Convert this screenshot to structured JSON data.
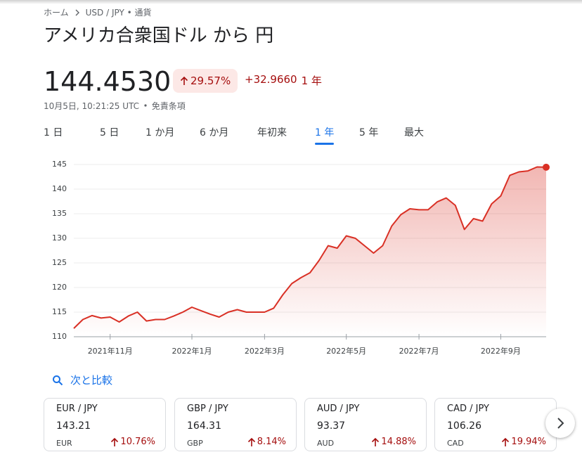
{
  "breadcrumb": {
    "home": "ホーム",
    "current": "USD / JPY • 通貨"
  },
  "title": "アメリカ合衆国ドル から 円",
  "price": "144.4530",
  "change_percent": "29.57%",
  "change_value": "+32.9660",
  "change_period": "1 年",
  "timestamp": "10月5日, 10:21:25 UTC",
  "disclaimer": "免責条項",
  "tabs": [
    "1 日",
    "5 日",
    "1 か月",
    "6 か月",
    "年初来",
    "1 年",
    "5 年",
    "最大"
  ],
  "active_tab": 5,
  "chart_data": {
    "type": "line",
    "color": "#d93025",
    "categories": [
      null,
      null,
      null,
      null,
      "2021年11月",
      null,
      null,
      null,
      null,
      null,
      null,
      null,
      null,
      "2022年1月",
      null,
      null,
      null,
      null,
      null,
      null,
      null,
      "2022年3月",
      null,
      null,
      null,
      null,
      null,
      null,
      null,
      null,
      "2022年5月",
      null,
      null,
      null,
      null,
      null,
      null,
      null,
      "2022年7月",
      null,
      null,
      null,
      null,
      null,
      null,
      null,
      null,
      "2022年9月",
      null,
      null,
      null,
      null,
      null
    ],
    "values": [
      111.7,
      113.5,
      114.3,
      113.8,
      114.0,
      113.0,
      114.2,
      115.0,
      113.2,
      113.5,
      113.5,
      114.2,
      115.0,
      116.0,
      115.3,
      114.6,
      114.0,
      115.0,
      115.5,
      115.0,
      115.0,
      115.0,
      115.8,
      118.5,
      120.8,
      122.0,
      123.0,
      125.5,
      128.5,
      128.0,
      130.5,
      130.0,
      128.5,
      127.0,
      128.5,
      132.5,
      134.8,
      136.0,
      135.8,
      135.8,
      137.4,
      138.2,
      136.7,
      131.8,
      134.0,
      133.5,
      137.0,
      138.6,
      142.8,
      143.5,
      143.7,
      144.5,
      144.45
    ],
    "ylim": [
      110,
      146
    ],
    "yticks": [
      110,
      115,
      120,
      125,
      130,
      135,
      140,
      145
    ],
    "grid": true
  },
  "compare_label": "次と比較",
  "cards": [
    {
      "pair": "EUR / JPY",
      "price": "143.21",
      "currency": "EUR",
      "change": "10.76%"
    },
    {
      "pair": "GBP / JPY",
      "price": "164.31",
      "currency": "GBP",
      "change": "8.14%"
    },
    {
      "pair": "AUD / JPY",
      "price": "93.37",
      "currency": "AUD",
      "change": "14.88%"
    },
    {
      "pair": "CAD / JPY",
      "price": "106.26",
      "currency": "CAD",
      "change": "19.94%"
    }
  ]
}
